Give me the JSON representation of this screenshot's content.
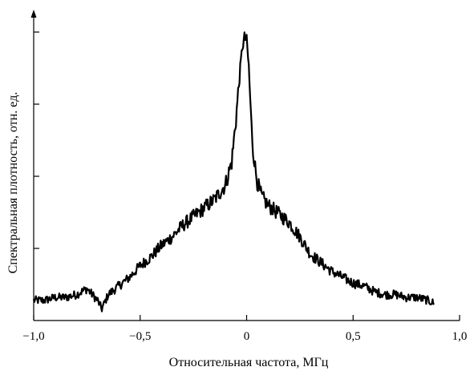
{
  "chart_data": {
    "type": "line",
    "xlabel": "Относительная частота, МГц",
    "ylabel": "Спектральная плотность, отн. ед.",
    "xlim": [
      -1.0,
      1.0
    ],
    "ylim": [
      0,
      1.0
    ],
    "x_ticks": [
      {
        "value": -1.0,
        "label": "−1,0"
      },
      {
        "value": -0.5,
        "label": "−0,5"
      },
      {
        "value": 0.0,
        "label": "0"
      },
      {
        "value": 0.5,
        "label": "0,5"
      },
      {
        "value": 1.0,
        "label": "1,0"
      }
    ],
    "y_ticks": [
      0.25,
      0.5,
      0.75,
      1.0
    ],
    "grid": false,
    "series": [
      {
        "color": "#000000",
        "x": [
          -1.0,
          -0.95,
          -0.9,
          -0.85,
          -0.8,
          -0.75,
          -0.7,
          -0.68,
          -0.65,
          -0.6,
          -0.55,
          -0.5,
          -0.45,
          -0.4,
          -0.35,
          -0.3,
          -0.25,
          -0.2,
          -0.15,
          -0.1,
          -0.07,
          -0.05,
          -0.03,
          -0.02,
          -0.01,
          0.0,
          0.01,
          0.02,
          0.03,
          0.05,
          0.07,
          0.1,
          0.15,
          0.2,
          0.25,
          0.3,
          0.35,
          0.4,
          0.45,
          0.5,
          0.55,
          0.6,
          0.65,
          0.7,
          0.75,
          0.8,
          0.85,
          0.88
        ],
        "y": [
          0.07,
          0.07,
          0.08,
          0.08,
          0.09,
          0.11,
          0.07,
          0.04,
          0.09,
          0.12,
          0.15,
          0.19,
          0.22,
          0.26,
          0.29,
          0.33,
          0.36,
          0.39,
          0.42,
          0.47,
          0.55,
          0.7,
          0.87,
          0.95,
          0.98,
          0.97,
          0.88,
          0.72,
          0.58,
          0.48,
          0.43,
          0.4,
          0.37,
          0.34,
          0.29,
          0.23,
          0.2,
          0.17,
          0.15,
          0.13,
          0.12,
          0.1,
          0.09,
          0.09,
          0.08,
          0.08,
          0.07,
          0.06
        ]
      }
    ]
  }
}
